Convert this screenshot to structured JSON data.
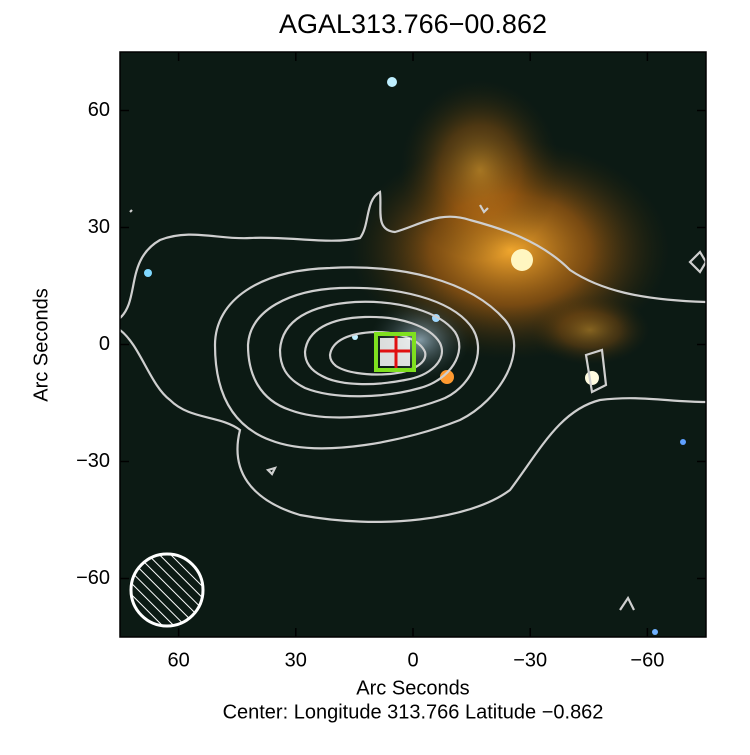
{
  "chart_data": {
    "type": "image",
    "title": "AGAL313.766−00.862",
    "xlabel": "Arc Seconds",
    "ylabel": "Arc Seconds",
    "caption": "Center:  Longitude 313.766 Latitude −0.862",
    "xlim": [
      75,
      -75
    ],
    "ylim": [
      -75,
      75
    ],
    "xticks": [
      60,
      30,
      0,
      {
        "value": -30,
        "label": "−30"
      },
      {
        "value": -60,
        "label": "−60"
      }
    ],
    "yticks": [
      {
        "value": -60,
        "label": "−60"
      },
      {
        "value": -30,
        "label": "−30"
      },
      0,
      30,
      60
    ]
  }
}
